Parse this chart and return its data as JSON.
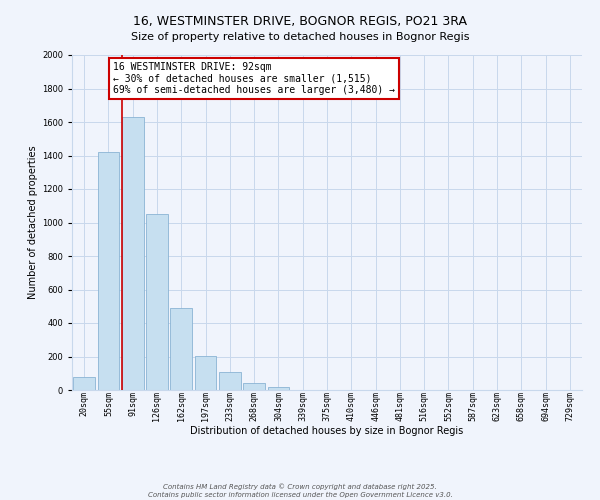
{
  "title": "16, WESTMINSTER DRIVE, BOGNOR REGIS, PO21 3RA",
  "subtitle": "Size of property relative to detached houses in Bognor Regis",
  "xlabel": "Distribution of detached houses by size in Bognor Regis",
  "ylabel": "Number of detached properties",
  "bar_labels": [
    "20sqm",
    "55sqm",
    "91sqm",
    "126sqm",
    "162sqm",
    "197sqm",
    "233sqm",
    "268sqm",
    "304sqm",
    "339sqm",
    "375sqm",
    "410sqm",
    "446sqm",
    "481sqm",
    "516sqm",
    "552sqm",
    "587sqm",
    "623sqm",
    "658sqm",
    "694sqm",
    "729sqm"
  ],
  "bar_values": [
    80,
    1420,
    1630,
    1050,
    490,
    205,
    110,
    40,
    15,
    0,
    0,
    0,
    0,
    0,
    0,
    0,
    0,
    0,
    0,
    0,
    0
  ],
  "bar_color": "#c6dff0",
  "bar_edge_color": "#8ab4d4",
  "ylim": [
    0,
    2000
  ],
  "yticks": [
    0,
    200,
    400,
    600,
    800,
    1000,
    1200,
    1400,
    1600,
    1800,
    2000
  ],
  "property_line_color": "#cc0000",
  "property_bar_index": 2,
  "annotation_title": "16 WESTMINSTER DRIVE: 92sqm",
  "annotation_line1": "← 30% of detached houses are smaller (1,515)",
  "annotation_line2": "69% of semi-detached houses are larger (3,480) →",
  "footer_line1": "Contains HM Land Registry data © Crown copyright and database right 2025.",
  "footer_line2": "Contains public sector information licensed under the Open Government Licence v3.0.",
  "bg_color": "#f0f4fc",
  "grid_color": "#c8d8ec",
  "title_fontsize": 9,
  "subtitle_fontsize": 8,
  "axis_label_fontsize": 7,
  "tick_fontsize": 6,
  "annotation_fontsize": 7,
  "footer_fontsize": 5
}
